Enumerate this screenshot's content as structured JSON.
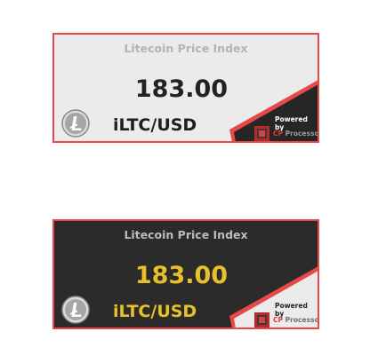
{
  "widgets": [
    {
      "theme": "light",
      "title": "Litecoin Price Index",
      "price": "183.00",
      "pair": "iLTC/USD",
      "powered_by": "Powered by",
      "brand_prefix": "CP",
      "brand_suffix": "Processor",
      "coin_icon": "litecoin-icon",
      "colors": {
        "background": "#ebebeb",
        "corner": "#262626",
        "price": "#222222",
        "border": "#e84848"
      }
    },
    {
      "theme": "dark",
      "title": "Litecoin Price Index",
      "price": "183.00",
      "pair": "iLTC/USD",
      "powered_by": "Powered by",
      "brand_prefix": "CP",
      "brand_suffix": "Processor",
      "coin_icon": "litecoin-icon",
      "colors": {
        "background": "#2b2b2b",
        "corner": "#ebebeb",
        "price": "#e8c12a",
        "border": "#e84848"
      }
    }
  ]
}
